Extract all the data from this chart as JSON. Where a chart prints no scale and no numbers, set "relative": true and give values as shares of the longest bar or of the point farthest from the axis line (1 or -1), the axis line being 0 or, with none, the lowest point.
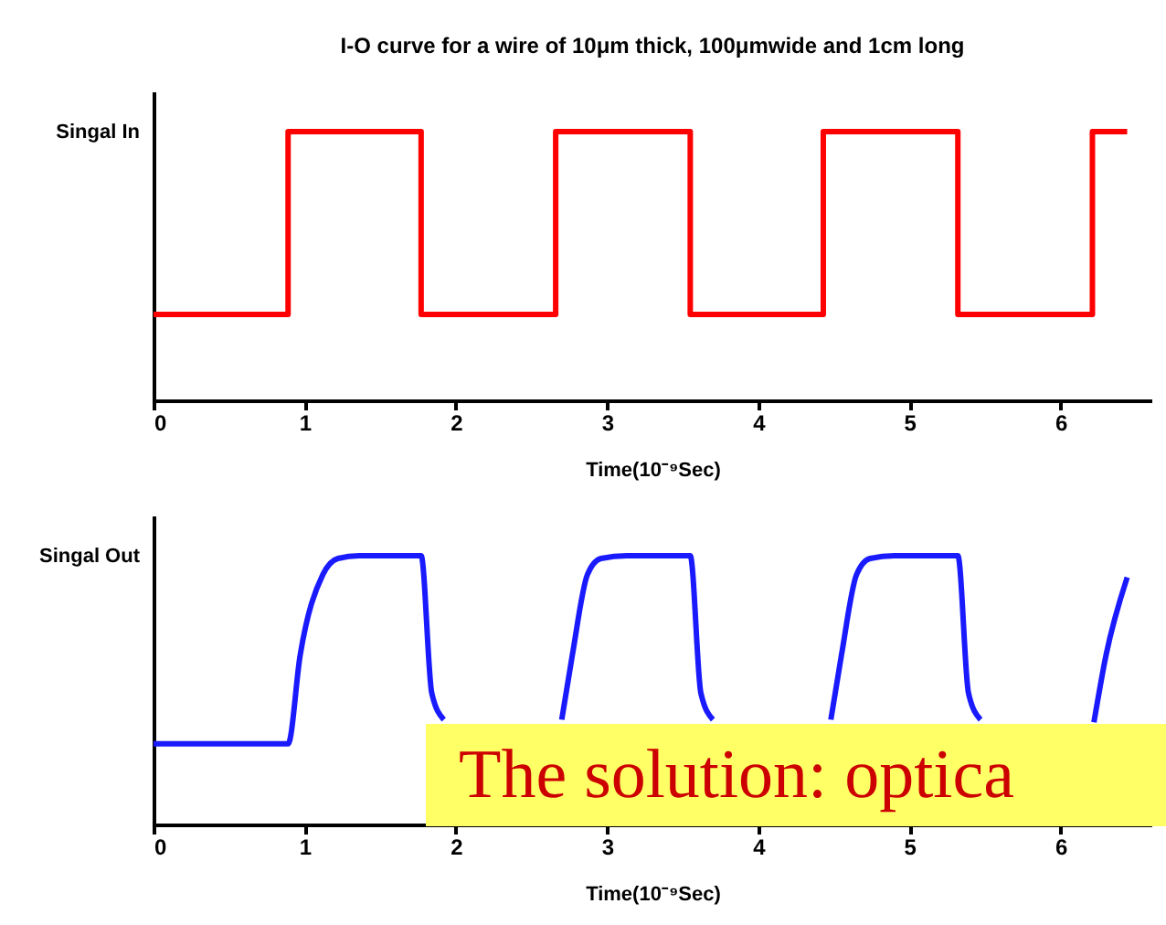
{
  "chart_data": [
    {
      "type": "step",
      "title": "I-O curve for a wire of 10μm thick, 100μmwide and 1cm long",
      "xlabel": "Time(10⁻⁹Sec)",
      "ylabel": "Singal In",
      "relative": true,
      "xlim": [
        0,
        6.6
      ],
      "xticks": [
        0,
        1,
        2,
        3,
        4,
        5,
        6
      ],
      "x": [
        0,
        0.89,
        1.77,
        2.66,
        3.55,
        4.43,
        5.32,
        6.21,
        6.44
      ],
      "series": [
        {
          "color": "#ff0000",
          "values": [
            0.32,
            1,
            0.32,
            1,
            0.32,
            1,
            0.32,
            1,
            1
          ]
        }
      ]
    },
    {
      "type": "line",
      "xlabel": "Time(10⁻⁹Sec)",
      "ylabel": "Singal Out",
      "relative": true,
      "xlim": [
        0,
        6.6
      ],
      "xticks": [
        0,
        1,
        2,
        3,
        4,
        5,
        6
      ],
      "x": [
        0,
        0.89,
        0.97,
        1.12,
        1.22,
        1.36,
        1.77,
        1.84,
        1.92,
        2.3,
        2.7,
        2.77,
        2.87,
        2.96,
        3.13,
        3.55,
        3.62,
        3.7,
        4.1,
        4.48,
        4.55,
        4.65,
        4.74,
        4.9,
        5.32,
        5.39,
        5.47,
        5.8,
        6.22,
        6.3,
        6.44
      ],
      "series": [
        {
          "color": "#1a1aff",
          "values": [
            0.3,
            0.3,
            0.63,
            0.93,
            0.99,
            1,
            1,
            0.49,
            0.39,
            null,
            0.39,
            0.63,
            0.93,
            0.99,
            1,
            1,
            0.49,
            0.39,
            null,
            0.39,
            0.63,
            0.93,
            0.99,
            1,
            1,
            0.49,
            0.39,
            null,
            0.38,
            0.63,
            0.92
          ]
        }
      ],
      "annotations": [
        "The solution: optica"
      ]
    }
  ]
}
